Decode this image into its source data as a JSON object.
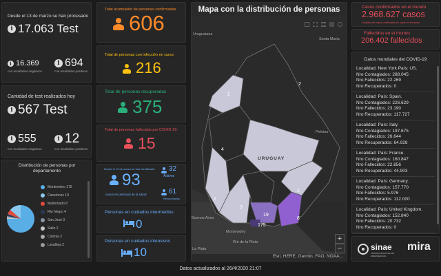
{
  "col1": {
    "tests_since_label": "Desde el 13 de marzo se han procesado",
    "tests_total": "17.063 Test",
    "negatives_value": "16.369",
    "negatives_label": "con resultados negativos",
    "positives_value": "694",
    "positives_label": "con resultados positivos",
    "tests_today_label": "Cantidad de test realizados hoy",
    "tests_today": "567 Test",
    "today_negatives_value": "555",
    "today_negatives_label": "con resultados negativos",
    "today_positives_value": "12",
    "today_positives_label": "con resultados positivos"
  },
  "distribution": {
    "title": "Distribución de personas por departamento",
    "items": [
      {
        "label": "Montevideo 175",
        "color": "#5aaee6"
      },
      {
        "label": "Canelones 19",
        "color": "#8cc8ee"
      },
      {
        "label": "Maldonado 8",
        "color": "#e04a3c"
      },
      {
        "label": "Río Negro 4",
        "color": "#2a3a55"
      },
      {
        "label": "San José 3",
        "color": "#8a96a8"
      },
      {
        "label": "Salto 2",
        "color": "#c9c9c9"
      },
      {
        "label": "Colonia 2",
        "color": "#aaaaaa"
      },
      {
        "label": "Lavalleja 2",
        "color": "#9a9a9a"
      }
    ]
  },
  "col2": {
    "confirmed_label": "Total acumulado de personas confirmadas",
    "confirmed_value": "606",
    "active_label": "Total de personas con infección en curso:",
    "active_value": "216",
    "recovered_label": "Total de personas recuperadas",
    "recovered_value": "375",
    "deceased_label": "Total de personas fallecidas por COVID-19:",
    "deceased_value": "15",
    "health_label_top": "Desde el 13 de marzo se han identificado",
    "health_value": "93",
    "health_label_bottom": "casos en personal de la salud",
    "health_active_value": "32",
    "health_active_label": "Activos",
    "health_recovered_value": "61",
    "health_recovered_label": "Recuperados",
    "intermediate_label": "Personas en cuidados intermedios",
    "intermediate_value": "0",
    "intensive_label": "Personas en cuidados intensivos",
    "intensive_value": "10"
  },
  "map": {
    "title": "Mapa con la distribución de personas",
    "attribution": "Esri, HERE, Garmin, FAO, NOAA...",
    "country_label": "URUGUAY",
    "places": [
      "Uruguaiana",
      "Santa Maria",
      "Pelotas",
      "Río de la Plata",
      "La Plata",
      "Montevideo",
      "Buenos Aires"
    ],
    "counts": [
      "2",
      "2",
      "4",
      "2",
      "2",
      "3",
      "19",
      "8",
      "175"
    ]
  },
  "world": {
    "confirmed_label": "Casos confirmados en el mundo",
    "confirmed_value": "2.968.627 casos",
    "confirmed_sub": "Cantidad de casos confirmados en casos en el mundo",
    "deceased_label": "Fallecidos en el mundo",
    "deceased_value": "206.402 fallecidos",
    "list_title": "Datos mundiales del COVID-19",
    "entries": [
      {
        "loc": "Localidad: New York País: US.",
        "cont": "Nro Contagiados: 288.045",
        "fall": "Nro Fallecidos: 22.269",
        "rec": "Nro Recuperados: 0"
      },
      {
        "loc": "Localidad: País: Spain.",
        "cont": "Nro Contagiados: 226.629",
        "fall": "Nro Fallecidos: 23.190",
        "rec": "Nro Recuperados: 117.727"
      },
      {
        "loc": "Localidad: País: Italy.",
        "cont": "Nro Contagiados: 197.675",
        "fall": "Nro Fallecidos: 26.644",
        "rec": "Nro Recuperados: 64.928"
      },
      {
        "loc": "Localidad: País: France.",
        "cont": "Nro Contagiados: 160.847",
        "fall": "Nro Fallecidos: 22.856",
        "rec": "Nro Recuperados: 44.903"
      },
      {
        "loc": "Localidad: País: Germany.",
        "cont": "Nro Contagiados: 157.770",
        "fall": "Nro Fallecidos: 5.976",
        "rec": "Nro Recuperados: 112.000"
      },
      {
        "loc": "Localidad: País: United Kingdom.",
        "cont": "Nro Contagiados: 152.840",
        "fall": "Nro Fallecidos: 20.732",
        "rec": "Nro Recuperados: 0"
      }
    ]
  },
  "logos": {
    "sinae": "sinae",
    "sinae_sub": "SISTEMA NACIONAL DE EMERGENCIAS",
    "mira": "mira"
  },
  "footer": {
    "updated": "Datos actualizados al 26/4/2020 21:07"
  },
  "colors": {
    "orange": "#ff8a2a",
    "yellow": "#ffc20e",
    "green": "#2ab07a",
    "red": "#e8505b",
    "blue": "#6ab0ff"
  }
}
